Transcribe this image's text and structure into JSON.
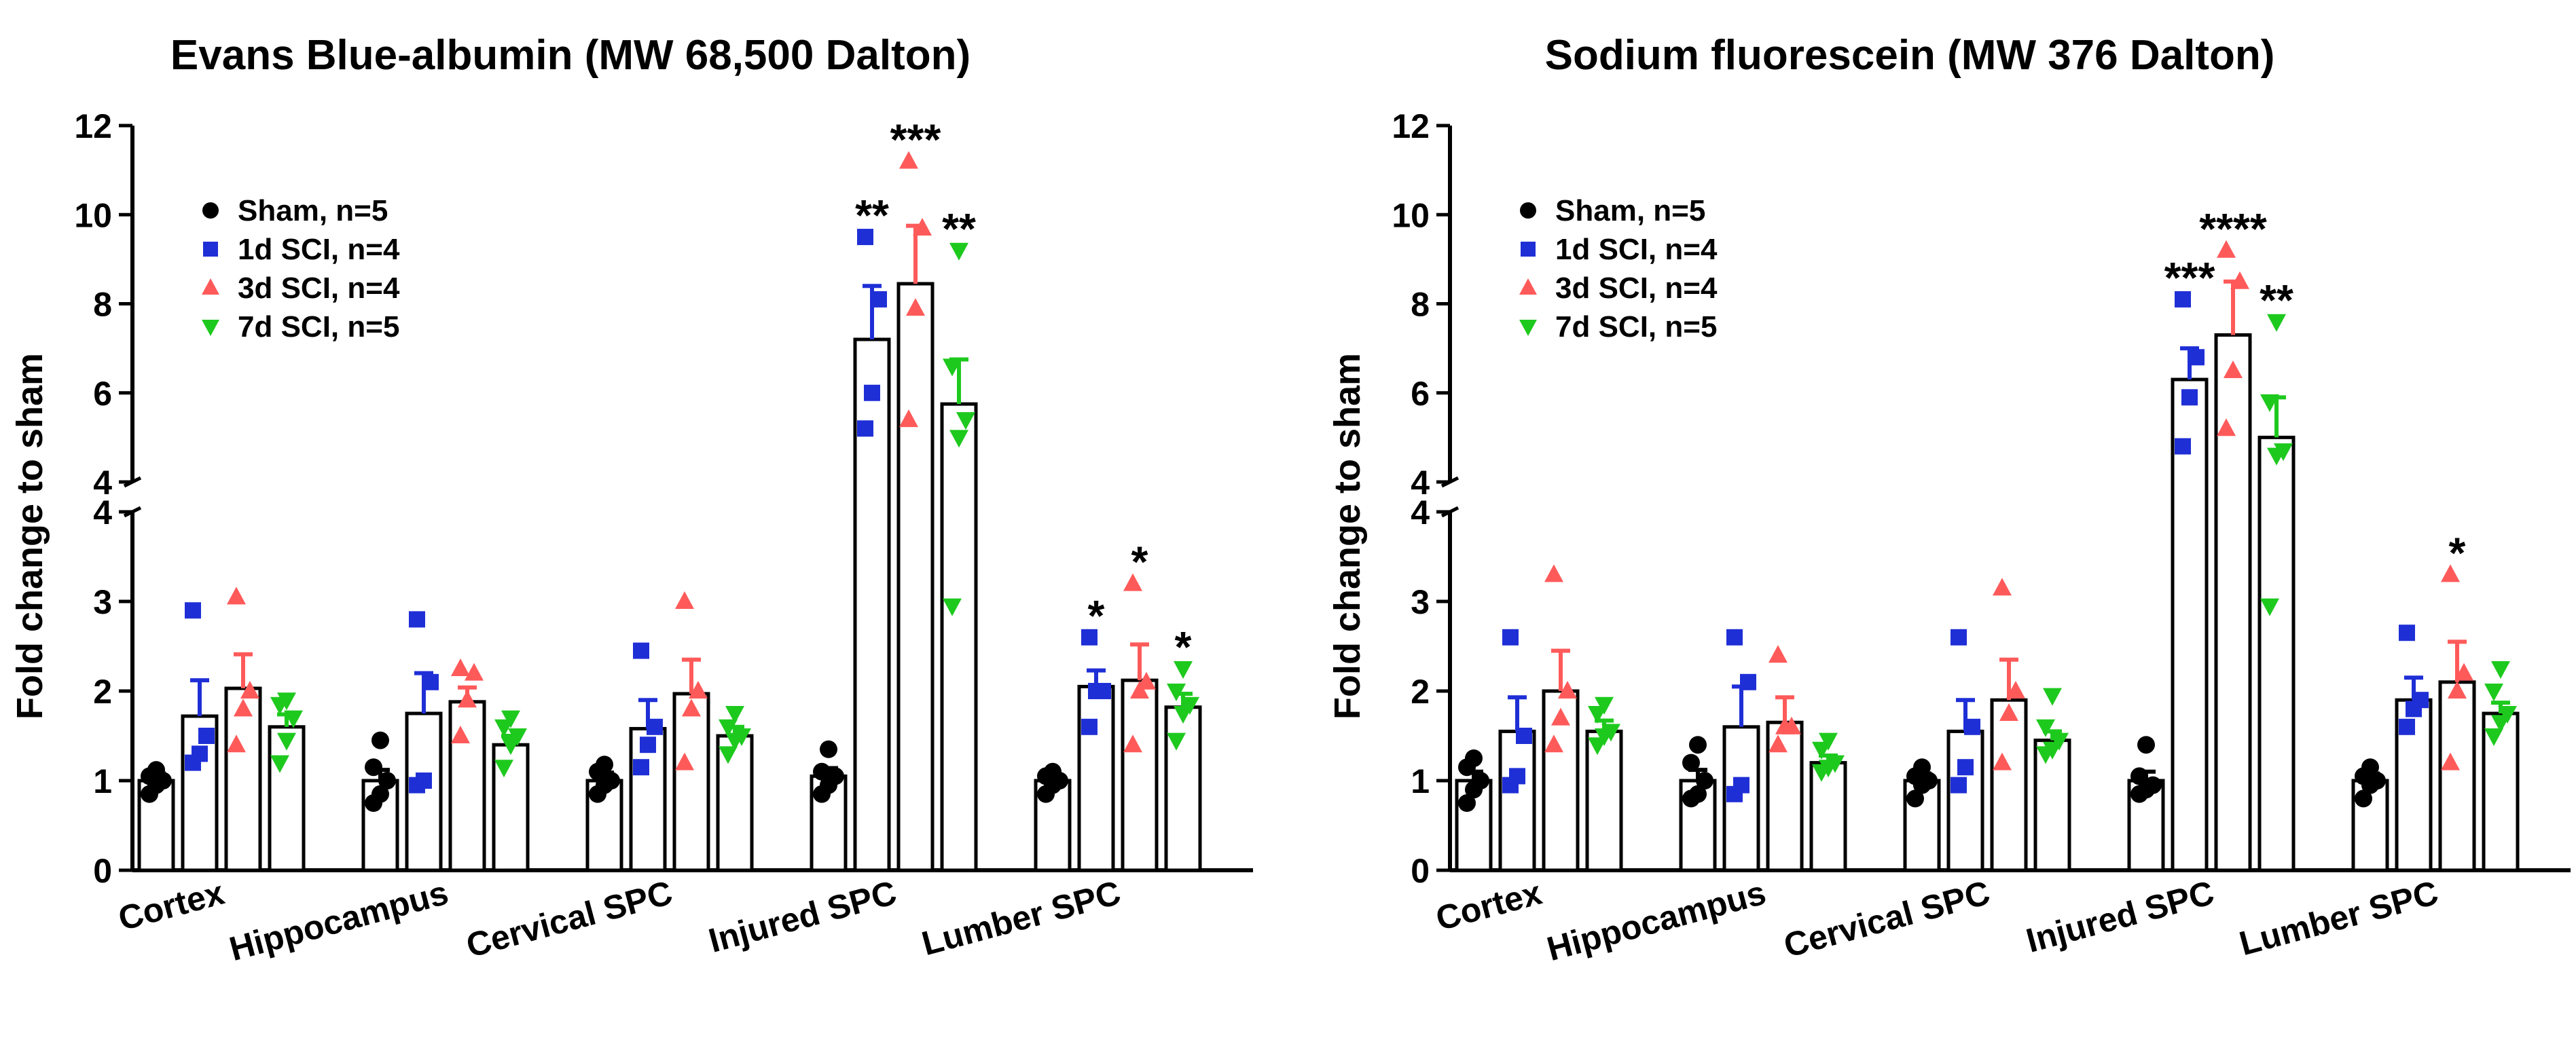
{
  "colors": {
    "sham": "#000000",
    "d1": "#1f2fd6",
    "d3": "#ff5a5a",
    "d7": "#1ec91e",
    "axis": "#000000"
  },
  "chart_data": [
    {
      "type": "bar",
      "title": "Evans Blue-albumin (MW 68,500 Dalton)",
      "ylabel": "Fold change to sham",
      "xlabel": "",
      "y_axis_break": {
        "lower_range": [
          0,
          4
        ],
        "upper_range": [
          4,
          12
        ]
      },
      "yticks_lower": [
        "0",
        "1",
        "2",
        "3",
        "4"
      ],
      "yticks_upper": [
        "4",
        "6",
        "8",
        "10",
        "12"
      ],
      "categories": [
        "Cortex",
        "Hippocampus",
        "Cervical SPC",
        "Injured SPC",
        "Lumber SPC"
      ],
      "legend_position": "top-left",
      "series": [
        {
          "name": "Sham, n=5",
          "marker": "circle",
          "color_key": "sham",
          "values": [
            1.0,
            1.0,
            1.0,
            1.05,
            1.0
          ],
          "sem": [
            0.08,
            0.12,
            0.09,
            0.09,
            0.06
          ],
          "points": [
            [
              0.85,
              0.95,
              1.0,
              1.05,
              1.12
            ],
            [
              0.75,
              0.85,
              1.0,
              1.15,
              1.45
            ],
            [
              0.85,
              0.95,
              1.0,
              1.1,
              1.18
            ],
            [
              0.85,
              0.95,
              1.05,
              1.1,
              1.35
            ],
            [
              0.85,
              0.95,
              1.0,
              1.05,
              1.1
            ]
          ],
          "significance": [
            "",
            "",
            "",
            "",
            ""
          ]
        },
        {
          "name": "1d SCI, n=4",
          "marker": "square",
          "color_key": "d1",
          "values": [
            1.72,
            1.75,
            1.58,
            7.2,
            2.05
          ],
          "sem": [
            0.4,
            0.45,
            0.32,
            1.2,
            0.18
          ],
          "points": [
            [
              1.2,
              1.3,
              1.5,
              2.9
            ],
            [
              0.95,
              1.0,
              2.1,
              2.8
            ],
            [
              1.15,
              1.4,
              1.6,
              2.45
            ],
            [
              5.2,
              6.0,
              8.1,
              9.5
            ],
            [
              1.6,
              2.0,
              2.0,
              2.6
            ]
          ],
          "significance": [
            "",
            "",
            "",
            "**",
            "*"
          ]
        },
        {
          "name": "3d SCI, n=4",
          "marker": "triangle-up",
          "color_key": "d3",
          "values": [
            2.03,
            1.88,
            1.97,
            8.45,
            2.12
          ],
          "sem": [
            0.38,
            0.16,
            0.38,
            1.3,
            0.4
          ],
          "points": [
            [
              1.4,
              1.8,
              2.0,
              3.05
            ],
            [
              1.5,
              1.9,
              2.2,
              2.25
            ],
            [
              1.2,
              1.8,
              2.0,
              3.0
            ],
            [
              5.4,
              7.9,
              9.7,
              11.2
            ],
            [
              1.4,
              2.0,
              2.1,
              3.2
            ]
          ],
          "significance": [
            "",
            "",
            "",
            "***",
            "*"
          ]
        },
        {
          "name": "7d SCI, n=5",
          "marker": "triangle-down",
          "color_key": "d7",
          "values": [
            1.6,
            1.4,
            1.5,
            5.75,
            1.82
          ],
          "sem": [
            0.14,
            0.1,
            0.1,
            1.0,
            0.15
          ],
          "points": [
            [
              1.2,
              1.45,
              1.7,
              1.85,
              1.9
            ],
            [
              1.15,
              1.4,
              1.5,
              1.6,
              1.7
            ],
            [
              1.3,
              1.45,
              1.5,
              1.6,
              1.75
            ],
            [
              2.95,
              5.0,
              5.4,
              6.6,
              9.2
            ],
            [
              1.45,
              1.75,
              1.85,
              2.0,
              2.25
            ]
          ],
          "significance": [
            "",
            "",
            "",
            "**",
            "*"
          ]
        }
      ]
    },
    {
      "type": "bar",
      "title": "Sodium fluorescein (MW 376 Dalton)",
      "ylabel": "Fold change to sham",
      "xlabel": "",
      "y_axis_break": {
        "lower_range": [
          0,
          4
        ],
        "upper_range": [
          4,
          12
        ]
      },
      "yticks_lower": [
        "0",
        "1",
        "2",
        "3",
        "4"
      ],
      "yticks_upper": [
        "4",
        "6",
        "8",
        "10",
        "12"
      ],
      "categories": [
        "Cortex",
        "Hippocampus",
        "Cervical SPC",
        "Injured SPC",
        "Lumber SPC"
      ],
      "legend_position": "top-left",
      "series": [
        {
          "name": "Sham, n=5",
          "marker": "circle",
          "color_key": "sham",
          "values": [
            1.0,
            1.0,
            1.0,
            1.0,
            1.0
          ],
          "sem": [
            0.1,
            0.12,
            0.08,
            0.1,
            0.08
          ],
          "points": [
            [
              0.75,
              0.9,
              1.0,
              1.15,
              1.25
            ],
            [
              0.8,
              0.85,
              1.0,
              1.2,
              1.4
            ],
            [
              0.8,
              0.95,
              1.0,
              1.05,
              1.15
            ],
            [
              0.85,
              0.9,
              0.95,
              1.05,
              1.4
            ],
            [
              0.8,
              0.95,
              1.0,
              1.05,
              1.15
            ]
          ],
          "significance": [
            "",
            "",
            "",
            "",
            ""
          ]
        },
        {
          "name": "1d SCI, n=4",
          "marker": "square",
          "color_key": "d1",
          "values": [
            1.55,
            1.6,
            1.55,
            6.3,
            1.9
          ],
          "sem": [
            0.38,
            0.45,
            0.35,
            0.7,
            0.25
          ],
          "points": [
            [
              0.95,
              1.05,
              1.5,
              2.6
            ],
            [
              0.85,
              0.95,
              2.1,
              2.6
            ],
            [
              0.95,
              1.15,
              1.6,
              2.6
            ],
            [
              4.8,
              5.9,
              6.8,
              8.1
            ],
            [
              1.6,
              1.8,
              1.9,
              2.65
            ]
          ],
          "significance": [
            "",
            "",
            "",
            "***",
            ""
          ]
        },
        {
          "name": "3d SCI, n=4",
          "marker": "triangle-up",
          "color_key": "d3",
          "values": [
            2.0,
            1.65,
            1.9,
            7.3,
            2.1
          ],
          "sem": [
            0.45,
            0.28,
            0.45,
            1.2,
            0.45
          ],
          "points": [
            [
              1.4,
              1.7,
              2.0,
              3.3
            ],
            [
              1.4,
              1.6,
              1.6,
              2.4
            ],
            [
              1.2,
              1.75,
              2.0,
              3.15
            ],
            [
              5.2,
              6.5,
              8.5,
              9.2
            ],
            [
              1.2,
              2.0,
              2.2,
              3.3
            ]
          ],
          "significance": [
            "",
            "",
            "",
            "****",
            "*"
          ]
        },
        {
          "name": "7d SCI, n=5",
          "marker": "triangle-down",
          "color_key": "d7",
          "values": [
            1.55,
            1.2,
            1.45,
            5.0,
            1.75
          ],
          "sem": [
            0.12,
            0.08,
            0.1,
            0.9,
            0.12
          ],
          "points": [
            [
              1.4,
              1.5,
              1.55,
              1.75,
              1.85
            ],
            [
              1.1,
              1.15,
              1.2,
              1.35,
              1.45
            ],
            [
              1.3,
              1.35,
              1.45,
              1.6,
              1.95
            ],
            [
              2.95,
              4.6,
              4.7,
              5.8,
              7.6
            ],
            [
              1.5,
              1.65,
              1.75,
              2.0,
              2.25
            ]
          ],
          "significance": [
            "",
            "",
            "",
            "**",
            ""
          ]
        }
      ]
    }
  ]
}
